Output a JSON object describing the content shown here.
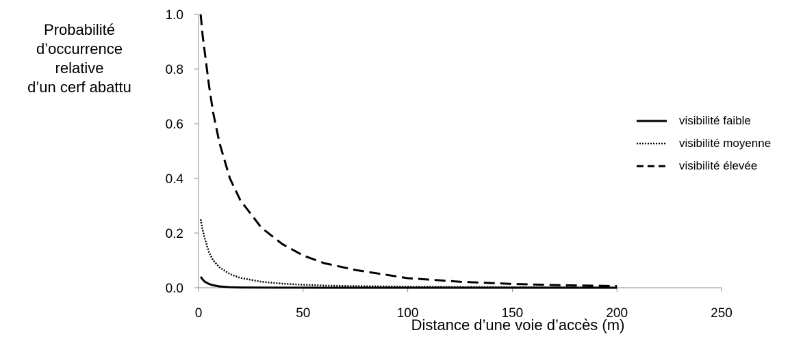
{
  "chart_data": {
    "type": "line",
    "title": "",
    "ylabel_lines": [
      "Probabilité",
      "d’occurrence",
      "relative",
      "d’un cerf abattu"
    ],
    "xlabel": "Distance d’une voie d’accès (m)",
    "xlim": [
      0,
      250
    ],
    "ylim": [
      0,
      1.0
    ],
    "xticks": [
      "0",
      "50",
      "100",
      "150",
      "200",
      "250"
    ],
    "yticks": [
      "0.0",
      "0.2",
      "0.4",
      "0.6",
      "0.8",
      "1.0"
    ],
    "grid": false,
    "legend_position": "right",
    "x": [
      1,
      2,
      3,
      5,
      7,
      10,
      15,
      20,
      30,
      40,
      50,
      60,
      75,
      100,
      125,
      150,
      175,
      200
    ],
    "series": [
      {
        "name": "visibilité faible",
        "style": "solid",
        "values": [
          0.04,
          0.03,
          0.022,
          0.014,
          0.009,
          0.005,
          0.002,
          0.001,
          0.0005,
          0.0003,
          0.0002,
          0.0001,
          0.0001,
          0.0,
          0.0,
          0.0,
          0.0,
          0.0
        ]
      },
      {
        "name": "visibilité moyenne",
        "style": "dotted",
        "values": [
          0.25,
          0.21,
          0.18,
          0.13,
          0.1,
          0.075,
          0.05,
          0.036,
          0.022,
          0.015,
          0.011,
          0.008,
          0.006,
          0.004,
          0.003,
          0.002,
          0.0015,
          0.001
        ]
      },
      {
        "name": "visibilité élevée",
        "style": "dashed",
        "values": [
          1.0,
          0.92,
          0.86,
          0.74,
          0.64,
          0.53,
          0.4,
          0.32,
          0.22,
          0.16,
          0.118,
          0.09,
          0.065,
          0.035,
          0.022,
          0.014,
          0.009,
          0.006
        ]
      }
    ]
  }
}
